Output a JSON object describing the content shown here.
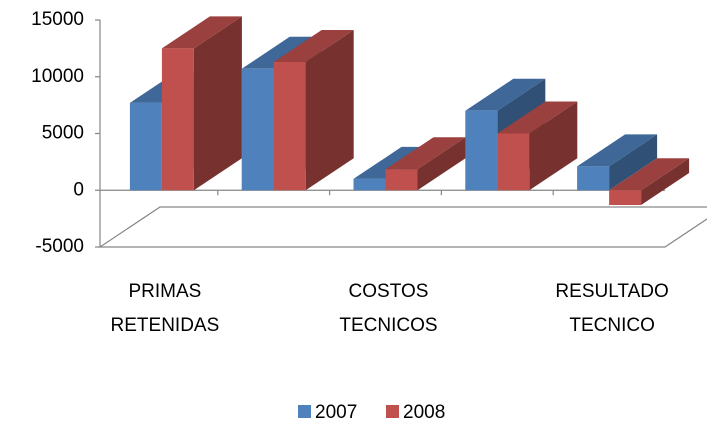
{
  "chart_data": {
    "type": "bar3d",
    "categories": [
      "PRIMAS RETENIDAS",
      null,
      "COSTOS TECNICOS",
      null,
      "RESULTADO TECNICO"
    ],
    "series": [
      {
        "name": "2007",
        "color": "#4f81bd",
        "values": [
          7700,
          10700,
          1000,
          7000,
          2100
        ]
      },
      {
        "name": "2008",
        "color": "#c0504d",
        "values": [
          12500,
          11300,
          1850,
          5000,
          -1300
        ]
      }
    ],
    "ylim": [
      -5000,
      15000
    ],
    "yticks": [
      -5000,
      0,
      5000,
      10000,
      15000
    ],
    "legend": "bottom"
  }
}
